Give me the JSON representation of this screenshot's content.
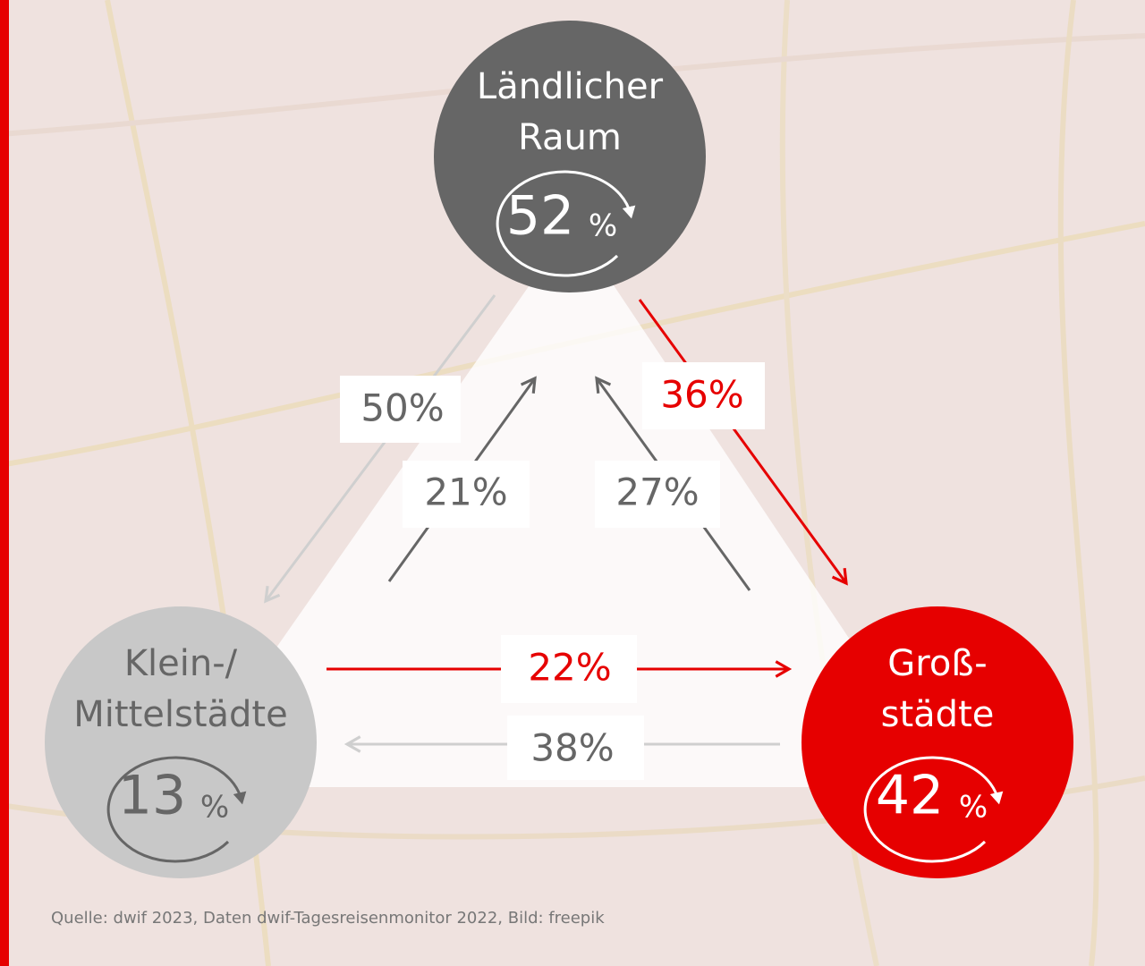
{
  "nodes": [
    {
      "label": [
        "Ländlicher",
        "Raum"
      ],
      "share": "52",
      "unit": "%"
    },
    {
      "label": [
        "Klein-/",
        "Mittelstädte"
      ],
      "share": "13",
      "unit": "%"
    },
    {
      "label": [
        "Groß-",
        "städte"
      ],
      "share": "42",
      "unit": "%"
    }
  ],
  "edges": [
    {
      "from": 0,
      "to": 1,
      "label": "50%"
    },
    {
      "from": 1,
      "to": 0,
      "label": "21%"
    },
    {
      "from": 2,
      "to": 0,
      "label": "27%"
    },
    {
      "from": 0,
      "to": 2,
      "label": "36%"
    },
    {
      "from": 1,
      "to": 2,
      "label": "22%"
    },
    {
      "from": 2,
      "to": 1,
      "label": "38%"
    }
  ],
  "footer": "Quelle: dwif 2023, Daten dwif-Tagesreisenmonitor 2022, Bild: freepik"
}
